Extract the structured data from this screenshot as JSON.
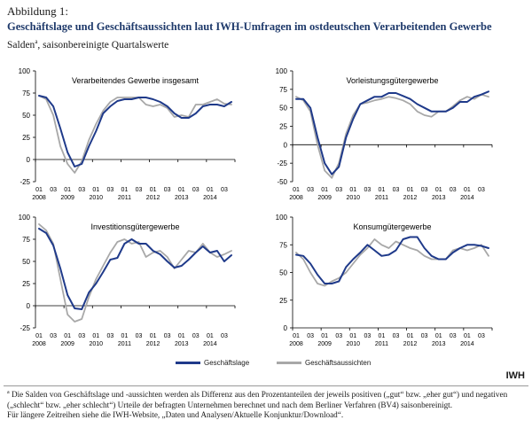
{
  "header": {
    "figure_label": "Abbildung 1:",
    "title": "Geschäftslage und Geschäftsaussichten laut IWH-Umfragen im ostdeutschen Verarbeitenden Gewerbe",
    "subtitle_main": "Salden",
    "subtitle_sup": "a",
    "subtitle_rest": ", saisonbereinigte Quartalswerte"
  },
  "colors": {
    "lage": "#1f3a8a",
    "aussichten": "#a8a8a8"
  },
  "legend": {
    "lage": "Geschäftslage",
    "aussichten": "Geschäftsaussichten"
  },
  "source_tag": "IWH",
  "footnote": {
    "marker": "a",
    "text": " Die Salden von Geschäftslage und -aussichten werden als Differenz aus den Prozentanteilen der jeweils positiven („gut“ bzw. „eher gut“) und negativen („schlecht“ bzw. „eher schlecht“) Urteile der befragten Unternehmen berechnet und nach dem Berliner Verfahren (BV4) saisonbereinigt.",
    "line2": "Für längere Zeitreihen siehe die IWH-Website, „Daten und Analysen/Aktuelle Konjunktur/Download“."
  },
  "chart_data": [
    {
      "type": "line",
      "title": "Verarbeitendes Gewerbe insgesamt",
      "x_quarter_labels": [
        "01",
        "03",
        "01",
        "03",
        "01",
        "03",
        "01",
        "03",
        "01",
        "03",
        "01",
        "03",
        "01",
        "03"
      ],
      "x_year_labels": [
        "2008",
        "2009",
        "2010",
        "2011",
        "2012",
        "2013",
        "2014"
      ],
      "ylim": [
        -25,
        100
      ],
      "yticks": [
        -25,
        0,
        25,
        50,
        75,
        100
      ],
      "series": [
        {
          "key": "lage",
          "values": [
            72,
            70,
            60,
            35,
            8,
            -8,
            -5,
            15,
            32,
            52,
            60,
            66,
            68,
            68,
            70,
            70,
            68,
            65,
            60,
            52,
            47,
            47,
            52,
            60,
            62,
            62,
            60,
            65
          ]
        },
        {
          "key": "aussichten",
          "values": [
            72,
            68,
            50,
            15,
            -5,
            -15,
            -2,
            22,
            40,
            55,
            65,
            70,
            70,
            70,
            70,
            62,
            60,
            62,
            58,
            48,
            50,
            48,
            62,
            62,
            65,
            68,
            63,
            62
          ]
        }
      ]
    },
    {
      "type": "line",
      "title": "Vorleistungsgütergewerbe",
      "x_quarter_labels": [
        "01",
        "03",
        "01",
        "03",
        "01",
        "03",
        "01",
        "03",
        "01",
        "03",
        "01",
        "03",
        "01",
        "03"
      ],
      "x_year_labels": [
        "2008",
        "2009",
        "2010",
        "2011",
        "2012",
        "2013",
        "2014"
      ],
      "ylim": [
        -50,
        100
      ],
      "yticks": [
        -50,
        -25,
        0,
        25,
        50,
        75,
        100
      ],
      "series": [
        {
          "key": "lage",
          "values": [
            62,
            62,
            50,
            10,
            -25,
            -40,
            -30,
            10,
            35,
            55,
            60,
            65,
            65,
            70,
            70,
            66,
            62,
            55,
            50,
            45,
            45,
            45,
            50,
            58,
            58,
            65,
            68,
            72
          ]
        },
        {
          "key": "aussichten",
          "values": [
            65,
            60,
            45,
            0,
            -35,
            -45,
            -25,
            15,
            40,
            55,
            57,
            60,
            62,
            65,
            63,
            60,
            55,
            45,
            40,
            38,
            45,
            45,
            52,
            60,
            65,
            62,
            68,
            65
          ]
        }
      ]
    },
    {
      "type": "line",
      "title": "Investitionsgütergewerbe",
      "x_quarter_labels": [
        "01",
        "03",
        "01",
        "03",
        "01",
        "03",
        "01",
        "03",
        "01",
        "03",
        "01",
        "03",
        "01",
        "03"
      ],
      "x_year_labels": [
        "2008",
        "2009",
        "2010",
        "2011",
        "2012",
        "2013",
        "2014"
      ],
      "ylim": [
        -25,
        100
      ],
      "yticks": [
        -25,
        0,
        25,
        50,
        75,
        100
      ],
      "series": [
        {
          "key": "lage",
          "values": [
            87,
            82,
            68,
            42,
            12,
            -3,
            -4,
            15,
            25,
            38,
            52,
            54,
            70,
            75,
            70,
            70,
            62,
            58,
            50,
            43,
            45,
            52,
            60,
            67,
            60,
            62,
            50,
            57
          ]
        },
        {
          "key": "aussichten",
          "values": [
            92,
            85,
            70,
            30,
            -10,
            -18,
            -15,
            10,
            30,
            45,
            60,
            72,
            75,
            70,
            72,
            55,
            60,
            62,
            55,
            42,
            52,
            62,
            60,
            70,
            60,
            55,
            58,
            62
          ]
        }
      ]
    },
    {
      "type": "line",
      "title": "Konsumgütergewerbe",
      "x_quarter_labels": [
        "01",
        "03",
        "01",
        "03",
        "01",
        "03",
        "01",
        "03",
        "01",
        "03",
        "01",
        "03",
        "01",
        "03"
      ],
      "x_year_labels": [
        "2008",
        "2009",
        "2010",
        "2011",
        "2012",
        "2013",
        "2014"
      ],
      "ylim": [
        0,
        100
      ],
      "yticks": [
        0,
        25,
        50,
        75,
        100
      ],
      "series": [
        {
          "key": "lage",
          "values": [
            66,
            65,
            58,
            48,
            40,
            40,
            42,
            55,
            62,
            68,
            75,
            70,
            65,
            66,
            70,
            80,
            82,
            82,
            72,
            65,
            62,
            62,
            68,
            72,
            75,
            75,
            74,
            72
          ]
        },
        {
          "key": "aussichten",
          "values": [
            68,
            62,
            50,
            40,
            38,
            42,
            45,
            50,
            58,
            66,
            72,
            80,
            75,
            72,
            78,
            75,
            72,
            70,
            65,
            62,
            62,
            62,
            70,
            72,
            70,
            72,
            75,
            65
          ]
        }
      ]
    }
  ]
}
